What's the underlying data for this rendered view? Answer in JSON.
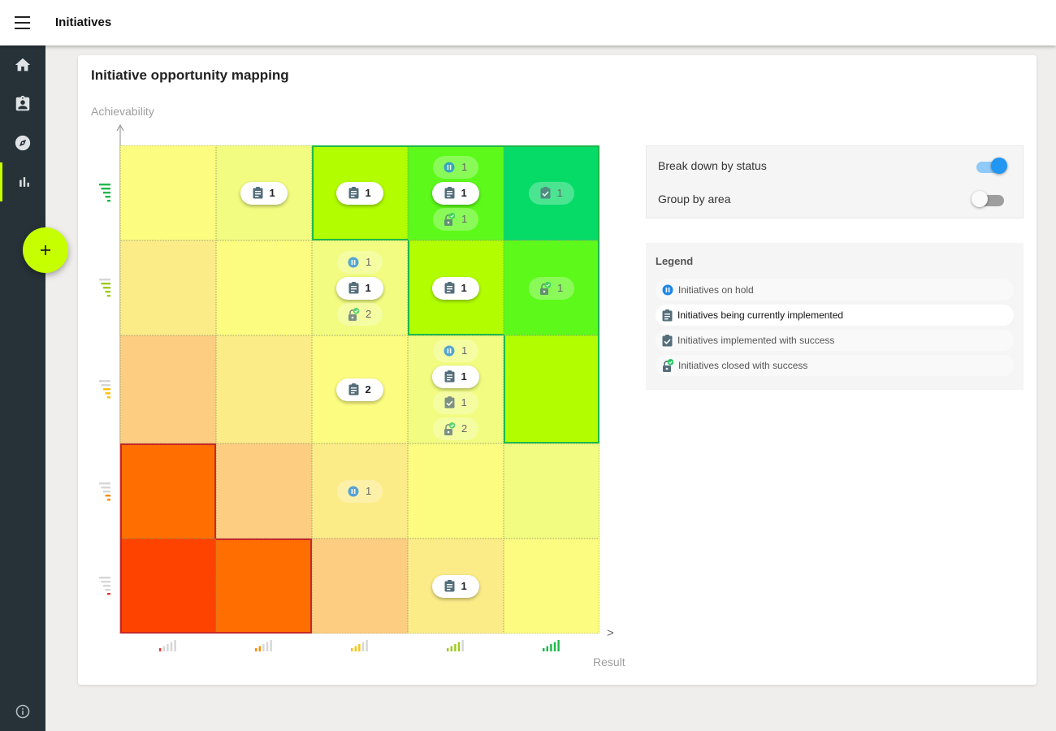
{
  "app": {
    "title": "Initiatives"
  },
  "card": {
    "title": "Initiative opportunity mapping",
    "y_label": "Achievability",
    "x_label": "Result",
    "x_arrow": ">"
  },
  "sidebar": {
    "items": [
      {
        "name": "home",
        "icon": "home-icon"
      },
      {
        "name": "assignment",
        "icon": "assignment-icon"
      },
      {
        "name": "explore",
        "icon": "compass-icon"
      },
      {
        "name": "chart",
        "icon": "bar-chart-icon",
        "active": true
      }
    ]
  },
  "fab": {
    "label": "+"
  },
  "options": {
    "break_down": {
      "label": "Break down by status",
      "on": true
    },
    "group_by_area": {
      "label": "Group by area",
      "on": false
    }
  },
  "legend": {
    "title": "Legend",
    "items": [
      {
        "label": "Initiatives on hold",
        "status": "hold",
        "selected": false
      },
      {
        "label": "Initiatives being currently implemented",
        "status": "impl",
        "selected": true
      },
      {
        "label": "Initiatives implemented with success",
        "status": "success",
        "selected": false
      },
      {
        "label": "Initiatives closed with success",
        "status": "closed",
        "selected": false
      }
    ]
  },
  "matrix": {
    "rows": 5,
    "cols": 5,
    "cells": [
      {
        "row": 0,
        "col": 0,
        "color": "#fcfc80",
        "chips": []
      },
      {
        "row": 0,
        "col": 1,
        "color": "#f1fc80",
        "chips": [
          {
            "status": "impl",
            "count": 1,
            "solid": true
          }
        ]
      },
      {
        "row": 0,
        "col": 2,
        "color": "#b2fe00",
        "chips": [
          {
            "status": "impl",
            "count": 1,
            "solid": true
          }
        ]
      },
      {
        "row": 0,
        "col": 3,
        "color": "#5df91a",
        "chips": [
          {
            "status": "hold",
            "count": 1,
            "solid": false
          },
          {
            "status": "impl",
            "count": 1,
            "solid": true
          },
          {
            "status": "closed",
            "count": 1,
            "solid": false
          }
        ]
      },
      {
        "row": 0,
        "col": 4,
        "color": "#06db68",
        "chips": [
          {
            "status": "success",
            "count": 1,
            "solid": false
          }
        ]
      },
      {
        "row": 1,
        "col": 0,
        "color": "#fcec88",
        "chips": []
      },
      {
        "row": 1,
        "col": 1,
        "color": "#fcfc80",
        "chips": []
      },
      {
        "row": 1,
        "col": 2,
        "color": "#f1fc80",
        "chips": [
          {
            "status": "hold",
            "count": 1,
            "solid": false
          },
          {
            "status": "impl",
            "count": 1,
            "solid": true
          },
          {
            "status": "closed",
            "count": 2,
            "solid": false
          }
        ]
      },
      {
        "row": 1,
        "col": 3,
        "color": "#b2fe00",
        "chips": [
          {
            "status": "impl",
            "count": 1,
            "solid": true
          }
        ]
      },
      {
        "row": 1,
        "col": 4,
        "color": "#5df91a",
        "chips": [
          {
            "status": "closed",
            "count": 1,
            "solid": false
          }
        ]
      },
      {
        "row": 2,
        "col": 0,
        "color": "#fdcd82",
        "chips": []
      },
      {
        "row": 2,
        "col": 1,
        "color": "#fcec88",
        "chips": []
      },
      {
        "row": 2,
        "col": 2,
        "color": "#fcfc80",
        "chips": [
          {
            "status": "impl",
            "count": 2,
            "solid": true
          }
        ]
      },
      {
        "row": 2,
        "col": 3,
        "color": "#f1fc80",
        "chips": [
          {
            "status": "hold",
            "count": 1,
            "solid": false
          },
          {
            "status": "impl",
            "count": 1,
            "solid": true
          },
          {
            "status": "success",
            "count": 1,
            "solid": false
          },
          {
            "status": "closed",
            "count": 2,
            "solid": false
          }
        ]
      },
      {
        "row": 2,
        "col": 4,
        "color": "#b2fe00",
        "chips": []
      },
      {
        "row": 3,
        "col": 0,
        "color": "#fe6e00",
        "chips": []
      },
      {
        "row": 3,
        "col": 1,
        "color": "#fdcd82",
        "chips": []
      },
      {
        "row": 3,
        "col": 2,
        "color": "#fcec88",
        "chips": [
          {
            "status": "hold",
            "count": 1,
            "solid": false
          }
        ]
      },
      {
        "row": 3,
        "col": 3,
        "color": "#fcfc80",
        "chips": []
      },
      {
        "row": 3,
        "col": 4,
        "color": "#f1fc80",
        "chips": []
      },
      {
        "row": 4,
        "col": 0,
        "color": "#fe4200",
        "chips": []
      },
      {
        "row": 4,
        "col": 1,
        "color": "#fe6e00",
        "chips": []
      },
      {
        "row": 4,
        "col": 2,
        "color": "#fdcd82",
        "chips": []
      },
      {
        "row": 4,
        "col": 3,
        "color": "#fcec88",
        "chips": [
          {
            "status": "impl",
            "count": 1,
            "solid": true
          }
        ]
      },
      {
        "row": 4,
        "col": 4,
        "color": "#fcfc80",
        "chips": []
      }
    ],
    "green_zone": [
      [
        0,
        2
      ],
      [
        0,
        3
      ],
      [
        0,
        4
      ],
      [
        1,
        3
      ],
      [
        1,
        4
      ],
      [
        2,
        4
      ]
    ],
    "red_zone": [
      [
        3,
        0
      ],
      [
        4,
        0
      ],
      [
        4,
        1
      ]
    ],
    "level_colors": [
      "#e53935",
      "#fb8c00",
      "#ffc107",
      "#9ccc1c",
      "#1fb84a"
    ]
  },
  "colors": {
    "hold": "#1e88e5",
    "icon": "#546e7a",
    "closed_check": "#22c55e",
    "green_border": "#1fb84a",
    "red_border": "#c62828",
    "accent": "#c6ff00",
    "toggle_on": "#2196f3"
  }
}
